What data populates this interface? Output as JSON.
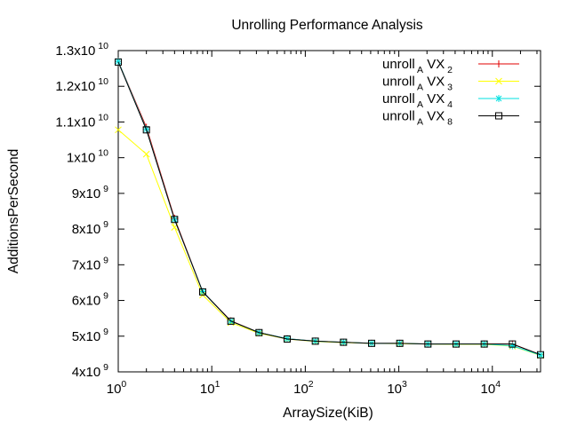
{
  "chart_data": {
    "type": "line",
    "title": "Unrolling Performance Analysis",
    "xlabel": "ArraySize(KiB)",
    "ylabel": "AdditionsPerSecond",
    "xscale": "log",
    "xlim": [
      1,
      32768
    ],
    "ylim": [
      4000000000,
      13000000000
    ],
    "grid": false,
    "legend_position": "top-right",
    "x": [
      1,
      2,
      4,
      8,
      16,
      32,
      64,
      128,
      256,
      512,
      1024,
      2048,
      4096,
      8192,
      16384,
      32768
    ],
    "x_ticks": [
      {
        "value": 1,
        "base": "10",
        "exp": "0"
      },
      {
        "value": 10,
        "base": "10",
        "exp": "1"
      },
      {
        "value": 100,
        "base": "10",
        "exp": "2"
      },
      {
        "value": 1000,
        "base": "10",
        "exp": "3"
      },
      {
        "value": 10000,
        "base": "10",
        "exp": "4"
      }
    ],
    "y_ticks": [
      {
        "value": 4000000000,
        "mantissa": "4x10",
        "exp": "9"
      },
      {
        "value": 5000000000,
        "mantissa": "5x10",
        "exp": "9"
      },
      {
        "value": 6000000000,
        "mantissa": "6x10",
        "exp": "9"
      },
      {
        "value": 7000000000,
        "mantissa": "7x10",
        "exp": "9"
      },
      {
        "value": 8000000000,
        "mantissa": "8x10",
        "exp": "9"
      },
      {
        "value": 9000000000,
        "mantissa": "9x10",
        "exp": "9"
      },
      {
        "value": 10000000000,
        "mantissa": "1x10",
        "exp": "10"
      },
      {
        "value": 11000000000,
        "mantissa": "1.1x10",
        "exp": "10"
      },
      {
        "value": 12000000000,
        "mantissa": "1.2x10",
        "exp": "10"
      },
      {
        "value": 13000000000,
        "mantissa": "1.3x10",
        "exp": "10"
      }
    ],
    "series": [
      {
        "name_main": "unroll",
        "name_sub": "A",
        "name_mid": "VX",
        "name_sub2": "2",
        "color": "#e00000",
        "marker": "plus",
        "values": [
          12700000000,
          10850000000,
          8300000000,
          6250000000,
          5430000000,
          5100000000,
          4930000000,
          4860000000,
          4830000000,
          4800000000,
          4800000000,
          4780000000,
          4780000000,
          4780000000,
          4780000000,
          4480000000
        ]
      },
      {
        "name_main": "unroll",
        "name_sub": "A",
        "name_mid": "VX",
        "name_sub2": "3",
        "color": "#ffff00",
        "marker": "cross",
        "values": [
          10780000000,
          10100000000,
          8050000000,
          6150000000,
          5380000000,
          5080000000,
          4920000000,
          4850000000,
          4820000000,
          4800000000,
          4790000000,
          4780000000,
          4770000000,
          4770000000,
          4720000000,
          4460000000
        ]
      },
      {
        "name_main": "unroll",
        "name_sub": "A",
        "name_mid": "VX",
        "name_sub2": "4",
        "color": "#00e0e0",
        "marker": "star",
        "values": [
          12700000000,
          10800000000,
          8270000000,
          6250000000,
          5420000000,
          5100000000,
          4930000000,
          4860000000,
          4830000000,
          4800000000,
          4800000000,
          4780000000,
          4780000000,
          4780000000,
          4730000000,
          4470000000
        ]
      },
      {
        "name_main": "unroll",
        "name_sub": "A",
        "name_mid": "VX",
        "name_sub2": "8",
        "color": "#000000",
        "marker": "square",
        "values": [
          12680000000,
          10780000000,
          8270000000,
          6240000000,
          5420000000,
          5100000000,
          4920000000,
          4860000000,
          4830000000,
          4800000000,
          4800000000,
          4780000000,
          4780000000,
          4780000000,
          4780000000,
          4480000000
        ]
      }
    ]
  }
}
